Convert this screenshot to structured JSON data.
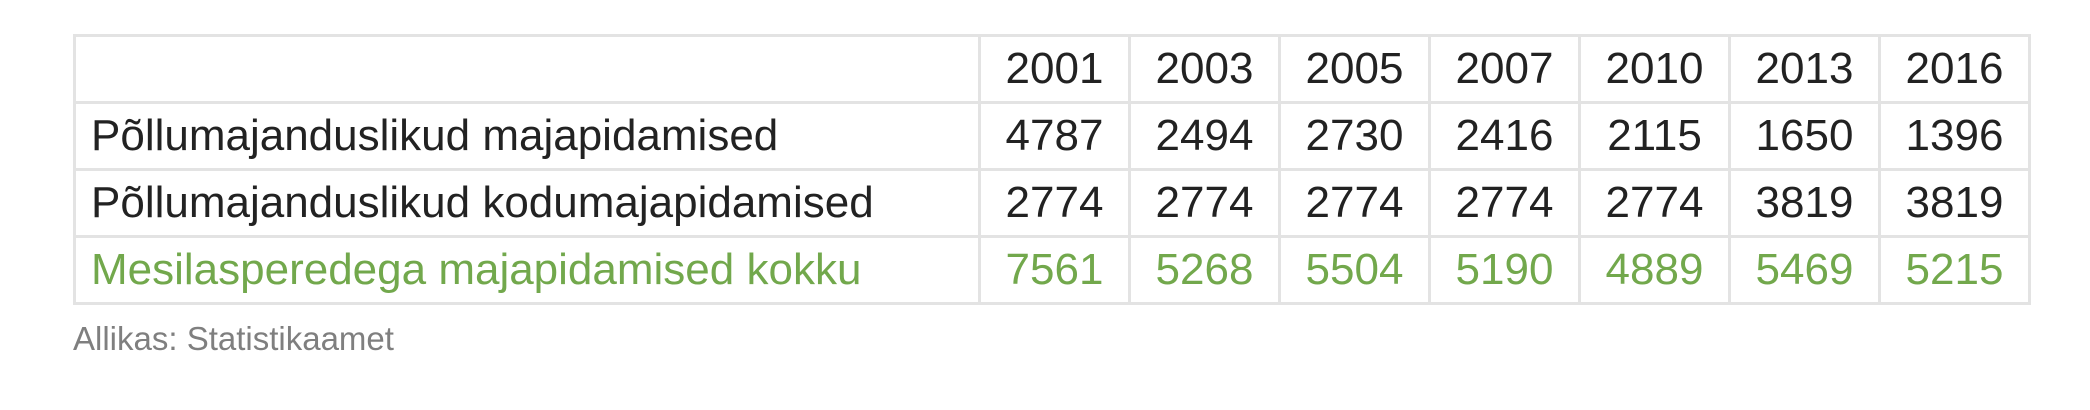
{
  "chart_data": {
    "type": "table",
    "columns": [
      "2001",
      "2003",
      "2005",
      "2007",
      "2010",
      "2013",
      "2016"
    ],
    "rows": [
      {
        "label": "Põllumajanduslikud majapidamised",
        "values": [
          4787,
          2494,
          2730,
          2416,
          2115,
          1650,
          1396
        ]
      },
      {
        "label": "Põllumajanduslikud kodumajapidamised",
        "values": [
          2774,
          2774,
          2774,
          2774,
          2774,
          3819,
          3819
        ]
      },
      {
        "label": "Mesilasperedega majapidamised kokku",
        "values": [
          7561,
          5268,
          5504,
          5190,
          4889,
          5469,
          5215
        ],
        "highlight": true
      }
    ],
    "source": "Allikas: Statistikaamet"
  },
  "colors": {
    "text": "#222222",
    "total_row": "#72a84c",
    "grid": "#e3e3e3",
    "source_text": "#7f7f7f"
  }
}
